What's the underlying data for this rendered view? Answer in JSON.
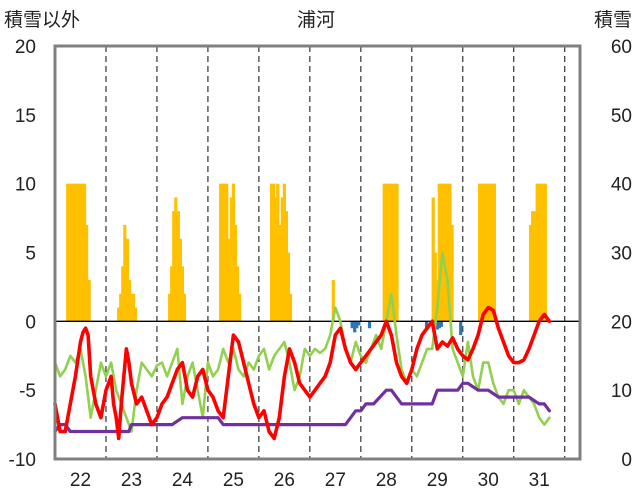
{
  "chart_data": {
    "type": "bar+line",
    "title": "浦河",
    "ylabel_left": "積雪以外",
    "ylabel_right": "積雪",
    "ylim_left": [
      -10,
      20
    ],
    "ylim_right": [
      0,
      60
    ],
    "yticks_left": [
      "20",
      "15",
      "10",
      "5",
      "0",
      "-5",
      "-10"
    ],
    "yticks_right": [
      "60",
      "50",
      "40",
      "30",
      "20",
      "10",
      "0"
    ],
    "xlim": [
      21.5,
      31.8
    ],
    "xticks": [
      "22",
      "23",
      "24",
      "25",
      "26",
      "27",
      "28",
      "29",
      "30",
      "31"
    ],
    "grid": "dashed vertical at day boundaries",
    "colors": {
      "sunshine": "#ffc000",
      "precipitation": "#2e75b6",
      "temperature": "#ff0000",
      "wind": "#92d050",
      "snow_depth": "#7030a0",
      "grid": "#333333",
      "frame": "#808080"
    },
    "series": [
      {
        "key": "sunshine",
        "kind": "bar",
        "axis": "left",
        "x": [
          21.75,
          21.79,
          21.83,
          21.87,
          21.92,
          21.96,
          22.0,
          22.04,
          22.08,
          22.12,
          22.17,
          22.75,
          22.79,
          22.83,
          22.87,
          22.92,
          22.96,
          23.0,
          23.04,
          23.08,
          23.75,
          23.79,
          23.83,
          23.87,
          23.92,
          23.96,
          24.0,
          24.04,
          24.75,
          24.79,
          24.83,
          24.87,
          24.92,
          24.96,
          25.0,
          25.04,
          25.08,
          25.12,
          25.75,
          25.79,
          25.83,
          25.87,
          25.92,
          25.96,
          26.0,
          26.04,
          26.08,
          26.12,
          26.96,
          27.96,
          28.0,
          28.04,
          28.08,
          28.12,
          28.17,
          28.21,
          28.92,
          28.96,
          29.0,
          29.04,
          29.08,
          29.12,
          29.17,
          29.21,
          29.25,
          29.29,
          29.83,
          29.87,
          29.92,
          29.96,
          30.0,
          30.04,
          30.08,
          30.12,
          30.83,
          30.87,
          30.92,
          30.96,
          31.0,
          31.04,
          31.08,
          31.12
        ],
        "values": [
          10,
          10,
          10,
          10,
          10,
          10,
          10,
          10,
          10,
          7,
          3,
          1,
          2,
          4,
          7,
          6,
          3,
          2,
          2,
          1,
          2,
          4,
          8,
          9,
          8,
          6,
          4,
          2,
          10,
          10,
          10,
          10,
          6,
          9,
          10,
          7,
          4,
          2,
          10,
          10,
          9,
          10,
          7,
          9,
          10,
          8,
          5,
          2,
          3,
          10,
          10,
          10,
          10,
          10,
          10,
          10,
          9,
          5,
          3,
          10,
          10,
          10,
          10,
          10,
          10,
          7,
          10,
          10,
          10,
          10,
          10,
          10,
          10,
          10,
          7,
          8,
          8,
          10,
          10,
          10,
          10,
          10
        ]
      },
      {
        "key": "precipitation",
        "kind": "bar",
        "axis": "left",
        "x": [
          27.33,
          27.38,
          27.42,
          27.46,
          27.67,
          28.79,
          29.0,
          29.04,
          29.08,
          29.46
        ],
        "values": [
          -0.5,
          -0.8,
          -0.5,
          -0.3,
          -0.5,
          -0.5,
          -0.6,
          -0.5,
          -0.4,
          -1.0
        ]
      },
      {
        "key": "temperature",
        "kind": "line",
        "axis": "left",
        "x": [
          21.5,
          21.6,
          21.7,
          21.8,
          21.9,
          22.0,
          22.05,
          22.1,
          22.15,
          22.2,
          22.3,
          22.4,
          22.5,
          22.6,
          22.65,
          22.7,
          22.75,
          22.8,
          22.85,
          22.9,
          22.95,
          23.0,
          23.1,
          23.2,
          23.3,
          23.4,
          23.5,
          23.6,
          23.7,
          23.8,
          23.9,
          24.0,
          24.1,
          24.2,
          24.3,
          24.4,
          24.5,
          24.6,
          24.7,
          24.8,
          24.9,
          25.0,
          25.1,
          25.2,
          25.3,
          25.4,
          25.5,
          25.6,
          25.7,
          25.8,
          25.9,
          26.0,
          26.1,
          26.2,
          26.3,
          26.4,
          26.5,
          26.6,
          26.7,
          26.8,
          26.9,
          27.0,
          27.1,
          27.2,
          27.3,
          27.4,
          27.5,
          27.6,
          27.7,
          27.8,
          27.9,
          28.0,
          28.1,
          28.2,
          28.3,
          28.4,
          28.5,
          28.6,
          28.7,
          28.8,
          28.9,
          29.0,
          29.1,
          29.2,
          29.3,
          29.4,
          29.5,
          29.6,
          29.7,
          29.8,
          29.9,
          30.0,
          30.1,
          30.2,
          30.3,
          30.4,
          30.5,
          30.6,
          30.7,
          30.8,
          30.9,
          31.0,
          31.1,
          31.2
        ],
        "values": [
          -6,
          -8,
          -8,
          -6,
          -4,
          -1.5,
          -0.8,
          -0.5,
          -1,
          -4,
          -6,
          -7,
          -5,
          -4,
          -6,
          -7,
          -8.5,
          -6,
          -4,
          -2,
          -3,
          -4.5,
          -6,
          -5.5,
          -6.5,
          -7.5,
          -7,
          -6,
          -5.5,
          -4.5,
          -3.5,
          -3,
          -5,
          -5.5,
          -4,
          -3.5,
          -5,
          -5.5,
          -6.5,
          -7,
          -4,
          -1,
          -1.5,
          -3,
          -4.5,
          -6,
          -7,
          -6.5,
          -8,
          -8.5,
          -7,
          -4,
          -2,
          -3,
          -4.5,
          -5,
          -5.5,
          -5,
          -4.5,
          -4,
          -3,
          -1,
          -0.5,
          -2,
          -3,
          -3.5,
          -3,
          -2.5,
          -2,
          -1.5,
          -1,
          0,
          -1,
          -3,
          -4,
          -4.5,
          -3.5,
          -2,
          -1,
          -0.5,
          0,
          -2,
          -1.5,
          -1.8,
          -1.2,
          -2,
          -2.5,
          -2.8,
          -2,
          -1,
          0.5,
          1,
          0.8,
          -0.5,
          -1.5,
          -2.5,
          -3,
          -3,
          -2.8,
          -2,
          -1,
          0,
          0.5,
          0
        ]
      },
      {
        "key": "wind",
        "kind": "line",
        "axis": "left",
        "x": [
          21.5,
          21.6,
          21.7,
          21.8,
          21.9,
          22.0,
          22.1,
          22.2,
          22.3,
          22.4,
          22.5,
          22.6,
          22.7,
          22.8,
          22.9,
          23.0,
          23.1,
          23.2,
          23.3,
          23.4,
          23.5,
          23.6,
          23.7,
          23.8,
          23.9,
          24.0,
          24.1,
          24.2,
          24.3,
          24.4,
          24.5,
          24.6,
          24.7,
          24.8,
          24.9,
          25.0,
          25.1,
          25.2,
          25.3,
          25.4,
          25.5,
          25.6,
          25.7,
          25.8,
          25.9,
          26.0,
          26.1,
          26.2,
          26.3,
          26.4,
          26.5,
          26.6,
          26.7,
          26.8,
          26.9,
          27.0,
          27.1,
          27.2,
          27.3,
          27.4,
          27.5,
          27.6,
          27.7,
          27.8,
          27.9,
          28.0,
          28.1,
          28.2,
          28.3,
          28.4,
          28.5,
          28.6,
          28.7,
          28.8,
          28.9,
          29.0,
          29.1,
          29.2,
          29.3,
          29.4,
          29.5,
          29.6,
          29.7,
          29.8,
          29.9,
          30.0,
          30.1,
          30.2,
          30.3,
          30.4,
          30.5,
          30.6,
          30.7,
          30.8,
          30.9,
          31.0,
          31.1,
          31.2
        ],
        "values": [
          -3,
          -4,
          -3.5,
          -2.5,
          -3,
          -2,
          -4,
          -7,
          -5,
          -3,
          -4,
          -3,
          -5,
          -6,
          -7,
          -8,
          -5,
          -3,
          -3.5,
          -4,
          -3.2,
          -3,
          -4,
          -3,
          -2,
          -6,
          -4,
          -3,
          -5,
          -7,
          -3,
          -4,
          -3.5,
          -2,
          -3,
          -2,
          -3.5,
          -4,
          -3,
          -3.5,
          -2.5,
          -2,
          -3.5,
          -2.5,
          -2,
          -1.5,
          -3,
          -5,
          -4,
          -2,
          -2.5,
          -2,
          -2.3,
          -2,
          -1,
          1,
          0,
          -2,
          -3,
          -1.5,
          -2.5,
          -3,
          -2,
          -1,
          -2,
          0,
          2,
          -1,
          -3.5,
          -4.5,
          -3.5,
          -4,
          -3,
          -2,
          -2,
          1,
          5,
          3,
          -2,
          -3,
          -4,
          -1.5,
          -4,
          -5,
          -3,
          -3,
          -4.5,
          -5.5,
          -6,
          -5,
          -5,
          -6,
          -5,
          -5.5,
          -6,
          -7,
          -7.5,
          -7
        ]
      },
      {
        "key": "snow_depth",
        "kind": "line",
        "axis": "right",
        "x": [
          21.5,
          21.6,
          21.7,
          21.8,
          22.0,
          22.2,
          22.4,
          22.6,
          22.8,
          22.95,
          23.0,
          23.4,
          23.8,
          24.0,
          24.4,
          24.7,
          24.8,
          25.0,
          25.4,
          25.8,
          26.0,
          26.4,
          26.8,
          27.0,
          27.2,
          27.3,
          27.4,
          27.5,
          27.6,
          27.75,
          28.0,
          28.1,
          28.2,
          28.3,
          28.4,
          28.5,
          28.6,
          28.7,
          28.8,
          28.9,
          28.95,
          29.0,
          29.2,
          29.4,
          29.5,
          29.6,
          29.8,
          30.0,
          30.2,
          30.4,
          30.6,
          30.8,
          31.0,
          31.1,
          31.2
        ],
        "values": [
          4,
          5,
          5,
          4,
          4,
          4,
          4,
          4,
          4,
          4,
          5,
          5,
          5,
          6,
          6,
          6,
          5,
          5,
          5,
          5,
          5,
          5,
          5,
          5,
          5,
          6,
          7,
          7,
          8,
          8,
          10,
          10,
          9,
          8,
          8,
          8,
          8,
          8,
          8,
          8,
          9,
          10,
          10,
          10,
          11,
          11,
          10,
          10,
          9,
          9,
          9,
          9,
          8,
          8,
          7
        ]
      }
    ]
  }
}
